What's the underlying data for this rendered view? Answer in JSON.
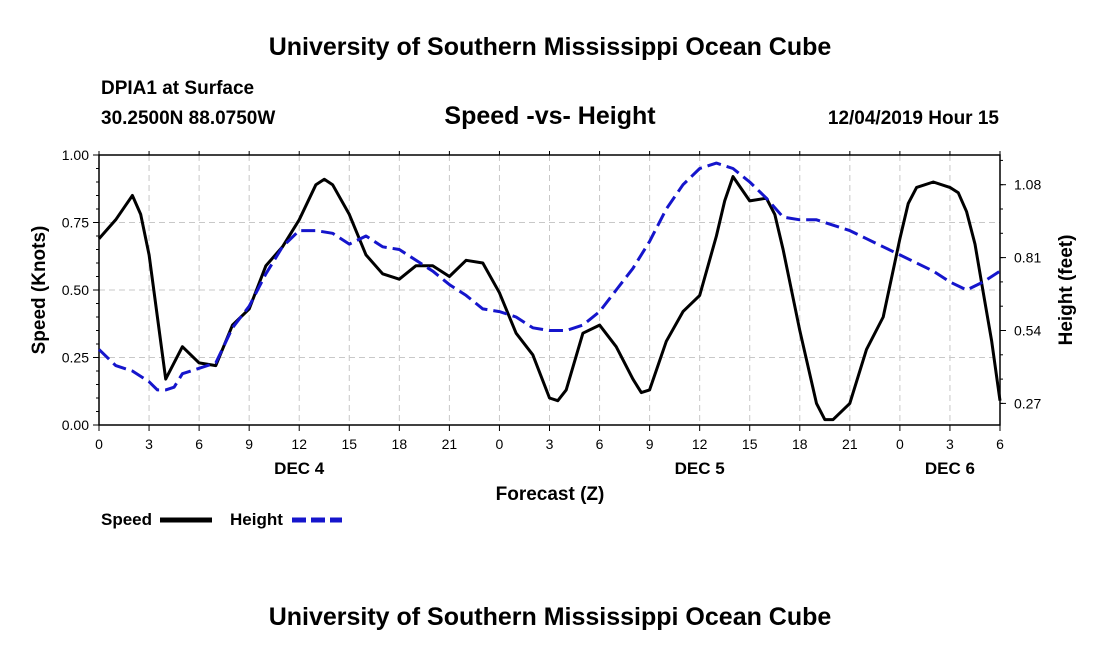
{
  "chart_data": {
    "type": "line",
    "header_title": "University of Southern Mississippi Ocean Cube",
    "footer_title": "University of Southern Mississippi Ocean Cube",
    "station": "DPIA1 at Surface",
    "coords": "30.2500N 88.0750W",
    "title": "Speed -vs- Height",
    "timestamp": "12/04/2019 Hour 15",
    "xlabel": "Forecast (Z)",
    "ylabel_left": "Speed (Knots)",
    "ylabel_right": "Height (feet)",
    "x_tick_labels": [
      "0",
      "3",
      "6",
      "9",
      "12",
      "15",
      "18",
      "21",
      "0",
      "3",
      "6",
      "9",
      "12",
      "15",
      "18",
      "21",
      "0",
      "3",
      "6"
    ],
    "date_labels": [
      {
        "label": "DEC 4",
        "x": 12
      },
      {
        "label": "DEC 5",
        "x": 36
      },
      {
        "label": "DEC 6",
        "x": 51
      }
    ],
    "x_range": [
      0,
      54
    ],
    "y_left": {
      "range": [
        0,
        1
      ],
      "ticks": [
        "0.00",
        "0.25",
        "0.50",
        "0.75",
        "1.00"
      ]
    },
    "y_right": {
      "range": [
        0.19,
        1.19
      ],
      "ticks": [
        "0.27",
        "0.54",
        "0.81",
        "1.08"
      ]
    },
    "legend": [
      {
        "name": "Speed",
        "color": "#000000",
        "style": "solid"
      },
      {
        "name": "Height",
        "color": "#1515cc",
        "style": "dashed"
      }
    ],
    "series": [
      {
        "name": "Speed",
        "axis": "left",
        "color": "#000000",
        "points": [
          [
            0,
            0.69
          ],
          [
            1,
            0.76
          ],
          [
            2,
            0.85
          ],
          [
            2.5,
            0.78
          ],
          [
            3,
            0.63
          ],
          [
            3.5,
            0.4
          ],
          [
            4,
            0.17
          ],
          [
            5,
            0.29
          ],
          [
            6,
            0.23
          ],
          [
            7,
            0.22
          ],
          [
            8,
            0.37
          ],
          [
            9,
            0.43
          ],
          [
            10,
            0.59
          ],
          [
            11,
            0.66
          ],
          [
            12,
            0.76
          ],
          [
            13,
            0.89
          ],
          [
            13.5,
            0.91
          ],
          [
            14,
            0.89
          ],
          [
            15,
            0.78
          ],
          [
            16,
            0.63
          ],
          [
            17,
            0.56
          ],
          [
            18,
            0.54
          ],
          [
            19,
            0.59
          ],
          [
            20,
            0.59
          ],
          [
            21,
            0.55
          ],
          [
            22,
            0.61
          ],
          [
            23,
            0.6
          ],
          [
            24,
            0.49
          ],
          [
            25,
            0.34
          ],
          [
            26,
            0.26
          ],
          [
            27,
            0.1
          ],
          [
            27.5,
            0.09
          ],
          [
            28,
            0.13
          ],
          [
            29,
            0.34
          ],
          [
            30,
            0.37
          ],
          [
            31,
            0.29
          ],
          [
            32,
            0.17
          ],
          [
            32.5,
            0.12
          ],
          [
            33,
            0.13
          ],
          [
            34,
            0.31
          ],
          [
            35,
            0.42
          ],
          [
            36,
            0.48
          ],
          [
            37,
            0.7
          ],
          [
            37.5,
            0.83
          ],
          [
            38,
            0.92
          ],
          [
            39,
            0.83
          ],
          [
            40,
            0.84
          ],
          [
            40.5,
            0.78
          ],
          [
            41,
            0.65
          ],
          [
            42,
            0.35
          ],
          [
            43,
            0.08
          ],
          [
            43.5,
            0.02
          ],
          [
            44,
            0.02
          ],
          [
            45,
            0.08
          ],
          [
            46,
            0.28
          ],
          [
            47,
            0.4
          ],
          [
            48,
            0.69
          ],
          [
            48.5,
            0.82
          ],
          [
            49,
            0.88
          ],
          [
            50,
            0.9
          ],
          [
            51,
            0.88
          ],
          [
            51.5,
            0.86
          ],
          [
            52,
            0.79
          ],
          [
            52.5,
            0.67
          ],
          [
            53,
            0.49
          ],
          [
            53.5,
            0.31
          ],
          [
            54,
            0.09
          ]
        ]
      },
      {
        "name": "Height",
        "axis": "right",
        "color": "#1515cc",
        "points": [
          [
            0,
            0.47
          ],
          [
            1,
            0.41
          ],
          [
            2,
            0.39
          ],
          [
            3,
            0.35
          ],
          [
            3.5,
            0.32
          ],
          [
            4,
            0.32
          ],
          [
            4.5,
            0.33
          ],
          [
            5,
            0.38
          ],
          [
            6,
            0.4
          ],
          [
            7,
            0.42
          ],
          [
            8,
            0.55
          ],
          [
            9,
            0.63
          ],
          [
            10,
            0.75
          ],
          [
            11,
            0.85
          ],
          [
            12,
            0.91
          ],
          [
            13,
            0.91
          ],
          [
            14,
            0.9
          ],
          [
            15,
            0.86
          ],
          [
            16,
            0.89
          ],
          [
            17,
            0.85
          ],
          [
            18,
            0.84
          ],
          [
            19,
            0.8
          ],
          [
            20,
            0.76
          ],
          [
            21,
            0.71
          ],
          [
            22,
            0.67
          ],
          [
            23,
            0.62
          ],
          [
            24,
            0.61
          ],
          [
            25,
            0.59
          ],
          [
            26,
            0.55
          ],
          [
            27,
            0.54
          ],
          [
            28,
            0.54
          ],
          [
            29,
            0.56
          ],
          [
            30,
            0.61
          ],
          [
            31,
            0.69
          ],
          [
            32,
            0.77
          ],
          [
            33,
            0.87
          ],
          [
            34,
            0.99
          ],
          [
            35,
            1.08
          ],
          [
            36,
            1.14
          ],
          [
            37,
            1.16
          ],
          [
            38,
            1.14
          ],
          [
            39,
            1.09
          ],
          [
            40,
            1.03
          ],
          [
            41,
            0.96
          ],
          [
            42,
            0.95
          ],
          [
            43,
            0.95
          ],
          [
            44,
            0.93
          ],
          [
            45,
            0.91
          ],
          [
            46,
            0.88
          ],
          [
            47,
            0.85
          ],
          [
            48,
            0.82
          ],
          [
            49,
            0.79
          ],
          [
            50,
            0.76
          ],
          [
            51,
            0.72
          ],
          [
            52,
            0.69
          ],
          [
            53,
            0.72
          ],
          [
            54,
            0.76
          ]
        ]
      }
    ]
  }
}
